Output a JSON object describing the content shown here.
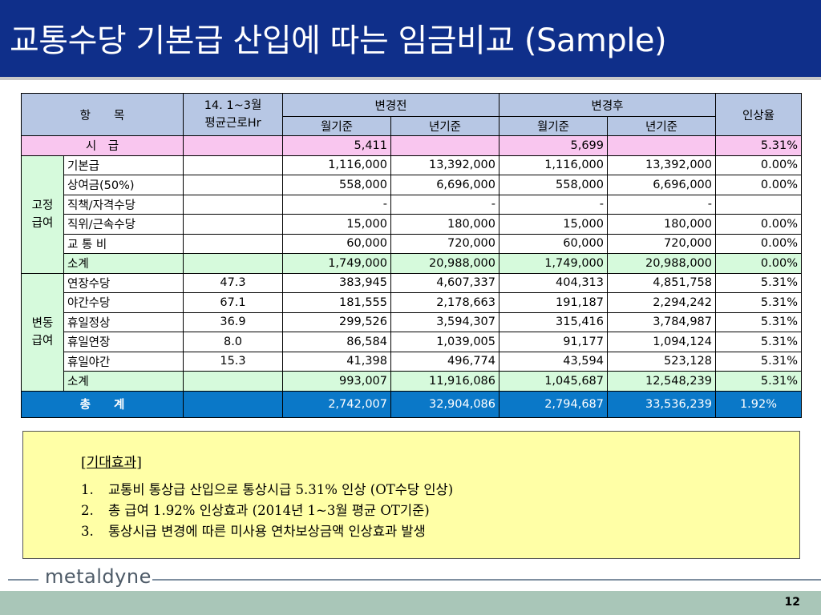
{
  "title": "교통수당 기본급 산입에 따는 임금비교 (Sample)",
  "table": {
    "header": {
      "item": "항　　목",
      "period_line1": "14. 1~3월",
      "period_line2": "평균근로Hr",
      "before": "변경전",
      "after": "변경후",
      "rate": "인상율",
      "monthly": "월기준",
      "yearly": "년기준"
    },
    "hourly_row": {
      "label": "시　급",
      "before_monthly": "5,411",
      "after_monthly": "5,699",
      "rate": "5.31%"
    },
    "fixed_group": "고정\n급여",
    "fixed_rows": [
      {
        "label": "기본급",
        "hr": "",
        "bm": "1,116,000",
        "by": "13,392,000",
        "am": "1,116,000",
        "ay": "13,392,000",
        "rate": "0.00%"
      },
      {
        "label": "상여금(50%)",
        "hr": "",
        "bm": "558,000",
        "by": "6,696,000",
        "am": "558,000",
        "ay": "6,696,000",
        "rate": "0.00%"
      },
      {
        "label": "직책/자격수당",
        "hr": "",
        "bm": "-",
        "by": "-",
        "am": "-",
        "ay": "-",
        "rate": ""
      },
      {
        "label": "직위/근속수당",
        "hr": "",
        "bm": "15,000",
        "by": "180,000",
        "am": "15,000",
        "ay": "180,000",
        "rate": "0.00%"
      },
      {
        "label": "교 통 비",
        "hr": "",
        "bm": "60,000",
        "by": "720,000",
        "am": "60,000",
        "ay": "720,000",
        "rate": "0.00%"
      }
    ],
    "fixed_subtotal": {
      "label": "소계",
      "bm": "1,749,000",
      "by": "20,988,000",
      "am": "1,749,000",
      "ay": "20,988,000",
      "rate": "0.00%"
    },
    "variable_group": "변동\n급여",
    "variable_rows": [
      {
        "label": "연장수당",
        "hr": "47.3",
        "bm": "383,945",
        "by": "4,607,337",
        "am": "404,313",
        "ay": "4,851,758",
        "rate": "5.31%"
      },
      {
        "label": "야간수당",
        "hr": "67.1",
        "bm": "181,555",
        "by": "2,178,663",
        "am": "191,187",
        "ay": "2,294,242",
        "rate": "5.31%"
      },
      {
        "label": "휴일정상",
        "hr": "36.9",
        "bm": "299,526",
        "by": "3,594,307",
        "am": "315,416",
        "ay": "3,784,987",
        "rate": "5.31%"
      },
      {
        "label": "휴일연장",
        "hr": "8.0",
        "bm": "86,584",
        "by": "1,039,005",
        "am": "91,177",
        "ay": "1,094,124",
        "rate": "5.31%"
      },
      {
        "label": "휴일야간",
        "hr": "15.3",
        "bm": "41,398",
        "by": "496,774",
        "am": "43,594",
        "ay": "523,128",
        "rate": "5.31%"
      }
    ],
    "variable_subtotal": {
      "label": "소계",
      "bm": "993,007",
      "by": "11,916,086",
      "am": "1,045,687",
      "ay": "12,548,239",
      "rate": "5.31%"
    },
    "total": {
      "label": "총　　계",
      "bm": "2,742,007",
      "by": "32,904,086",
      "am": "2,794,687",
      "ay": "33,536,239",
      "rate": "1.92%"
    }
  },
  "effects": {
    "heading": "[기대효과]",
    "items": [
      {
        "num": "1.",
        "text": "교통비 통상급 산입으로 통상시급 5.31% 인상 (OT수당 인상)"
      },
      {
        "num": "2.",
        "text": "총 급여 1.92% 인상효과 (2014년 1~3월 평균 OT기준)"
      },
      {
        "num": "3.",
        "text": "통상시급 변경에 따른 미사용 연차보상금액 인상효과 발생"
      }
    ]
  },
  "logo": "metaldyne",
  "page_number": "12",
  "colors": {
    "title_bar": "#0f2f8a",
    "header_fill": "#b7c7e4",
    "hourly_fill": "#f9c6ef",
    "group_fill": "#d6fadc",
    "total_fill": "#0a78c8",
    "effects_fill": "#ffffa6",
    "footer_fill": "#a9c6b8"
  }
}
